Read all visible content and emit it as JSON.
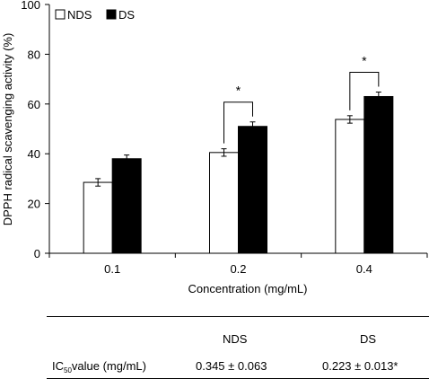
{
  "chart_data": {
    "type": "bar",
    "ylabel": "DPPH radical scavenging activity (%)",
    "xlabel": "Concentration (mg/mL)",
    "ylim": [
      0,
      100
    ],
    "yticks": [
      0,
      20,
      40,
      60,
      80,
      100
    ],
    "categories": [
      "0.1",
      "0.2",
      "0.4"
    ],
    "legend_position": "top-left",
    "series": [
      {
        "name": "NDS",
        "values": [
          28.5,
          40.5,
          53.8
        ],
        "errors": [
          1.5,
          1.5,
          1.5
        ],
        "fill": "#ffffff"
      },
      {
        "name": "DS",
        "values": [
          38.0,
          51.0,
          63.0
        ],
        "errors": [
          1.5,
          1.8,
          1.8
        ],
        "fill": "#000000"
      }
    ],
    "annotations": [
      {
        "category": "0.2",
        "text": "*"
      },
      {
        "category": "0.4",
        "text": "*"
      }
    ]
  },
  "ic50_table": {
    "headers": [
      "NDS",
      "DS"
    ],
    "row_label_prefix": "IC",
    "row_label_sub": "50",
    "row_label_suffix": "value (mg/mL)",
    "nds_value": "0.345 ± 0.063",
    "ds_value": "0.223 ± 0.013*"
  }
}
